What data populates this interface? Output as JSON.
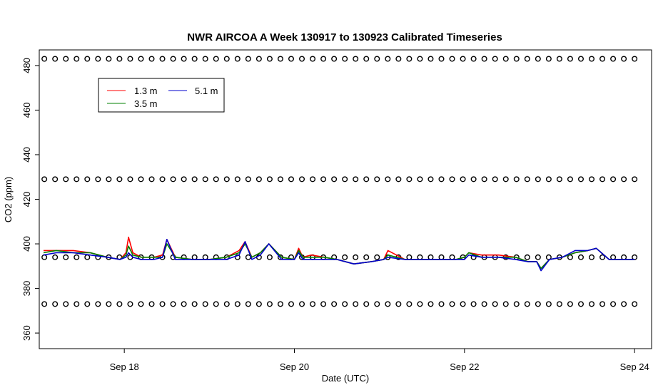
{
  "chart_data": {
    "type": "line",
    "title": "NWR AIRCOA A  Week 130917 to 130923  Calibrated Timeseries",
    "xlabel": "Date (UTC)",
    "ylabel": "CO2 (ppm)",
    "xlim": [
      17.0,
      24.2
    ],
    "ylim": [
      353,
      487
    ],
    "x_ticks": [
      {
        "value": 18,
        "label": "Sep 18"
      },
      {
        "value": 20,
        "label": "Sep 20"
      },
      {
        "value": 22,
        "label": "Sep 22"
      },
      {
        "value": 24,
        "label": "Sep 24"
      }
    ],
    "y_ticks": [
      360,
      380,
      400,
      420,
      440,
      460,
      480
    ],
    "legend": {
      "position": "top-left",
      "entries": [
        {
          "label": "1.3 m",
          "color": "#ff0000"
        },
        {
          "label": "3.5 m",
          "color": "#008000"
        },
        {
          "label": "5.1 m",
          "color": "#0000cc"
        }
      ]
    },
    "series": [
      {
        "name": "1.3 m",
        "color": "#ff0000",
        "x": [
          17.05,
          17.2,
          17.4,
          17.6,
          17.8,
          17.95,
          18.02,
          18.05,
          18.1,
          18.2,
          18.35,
          18.45,
          18.5,
          18.6,
          18.8,
          19.0,
          19.2,
          19.35,
          19.42,
          19.5,
          19.6,
          19.7,
          19.85,
          20.0,
          20.05,
          20.1,
          20.2,
          20.35,
          20.5,
          20.7,
          20.9,
          21.05,
          21.1,
          21.3,
          21.5,
          21.7,
          21.9,
          22.0,
          22.05,
          22.2,
          22.4,
          22.6,
          22.75,
          22.85,
          22.9,
          23.0,
          23.15,
          23.3,
          23.45,
          23.55,
          23.7,
          23.9,
          24.0
        ],
        "y": [
          397,
          397,
          397,
          396,
          394,
          393,
          396,
          403,
          396,
          394,
          394,
          395,
          402,
          394,
          393,
          393,
          394,
          397,
          401,
          394,
          396,
          400,
          394,
          393,
          398,
          394,
          395,
          394,
          393,
          391,
          392,
          393,
          397,
          393,
          393,
          393,
          393,
          394,
          396,
          395,
          395,
          394,
          392,
          392,
          389,
          393,
          394,
          396,
          397,
          398,
          393,
          393,
          393
        ]
      },
      {
        "name": "3.5 m",
        "color": "#008000",
        "x": [
          17.05,
          17.2,
          17.4,
          17.6,
          17.8,
          17.95,
          18.02,
          18.05,
          18.1,
          18.2,
          18.35,
          18.45,
          18.5,
          18.6,
          18.8,
          19.0,
          19.2,
          19.35,
          19.42,
          19.5,
          19.6,
          19.7,
          19.85,
          20.0,
          20.05,
          20.1,
          20.2,
          20.35,
          20.5,
          20.7,
          20.9,
          21.05,
          21.1,
          21.3,
          21.5,
          21.7,
          21.9,
          22.0,
          22.05,
          22.2,
          22.4,
          22.6,
          22.75,
          22.85,
          22.9,
          23.0,
          23.15,
          23.3,
          23.45,
          23.55,
          23.7,
          23.9,
          24.0
        ],
        "y": [
          396,
          397,
          396,
          396,
          394,
          393,
          395,
          399,
          395,
          394,
          394,
          394,
          400,
          394,
          393,
          393,
          394,
          396,
          400,
          394,
          396,
          400,
          394,
          393,
          397,
          394,
          394,
          394,
          393,
          391,
          392,
          393,
          395,
          393,
          393,
          393,
          393,
          394,
          396,
          394,
          394,
          394,
          392,
          392,
          389,
          393,
          394,
          396,
          397,
          398,
          393,
          393,
          393
        ]
      },
      {
        "name": "5.1 m",
        "color": "#0000cc",
        "x": [
          17.05,
          17.2,
          17.4,
          17.6,
          17.8,
          17.95,
          18.02,
          18.05,
          18.1,
          18.2,
          18.35,
          18.45,
          18.5,
          18.6,
          18.8,
          19.0,
          19.2,
          19.35,
          19.42,
          19.5,
          19.6,
          19.7,
          19.85,
          20.0,
          20.05,
          20.1,
          20.2,
          20.35,
          20.5,
          20.7,
          20.9,
          21.05,
          21.1,
          21.3,
          21.5,
          21.7,
          21.9,
          22.0,
          22.05,
          22.2,
          22.4,
          22.6,
          22.75,
          22.85,
          22.9,
          23.0,
          23.15,
          23.3,
          23.45,
          23.55,
          23.7,
          23.9,
          24.0
        ],
        "y": [
          395,
          396,
          396,
          395,
          394,
          393,
          394,
          396,
          394,
          393,
          393,
          394,
          402,
          393,
          393,
          393,
          393,
          395,
          401,
          393,
          395,
          400,
          393,
          393,
          396,
          393,
          393,
          393,
          393,
          391,
          392,
          393,
          394,
          393,
          393,
          393,
          393,
          393,
          395,
          394,
          394,
          393,
          392,
          392,
          388,
          393,
          394,
          397,
          397,
          398,
          393,
          393,
          393
        ]
      },
      {
        "name": "",
        "markers": "open-circle",
        "color": "#000000",
        "x_range": [
          17.06,
          24.0
        ],
        "levels": [
          {
            "y": 483,
            "count": 56
          },
          {
            "y": 429,
            "count": 56
          },
          {
            "y": 394,
            "count": 56
          },
          {
            "y": 373,
            "count": 56
          }
        ]
      }
    ]
  }
}
